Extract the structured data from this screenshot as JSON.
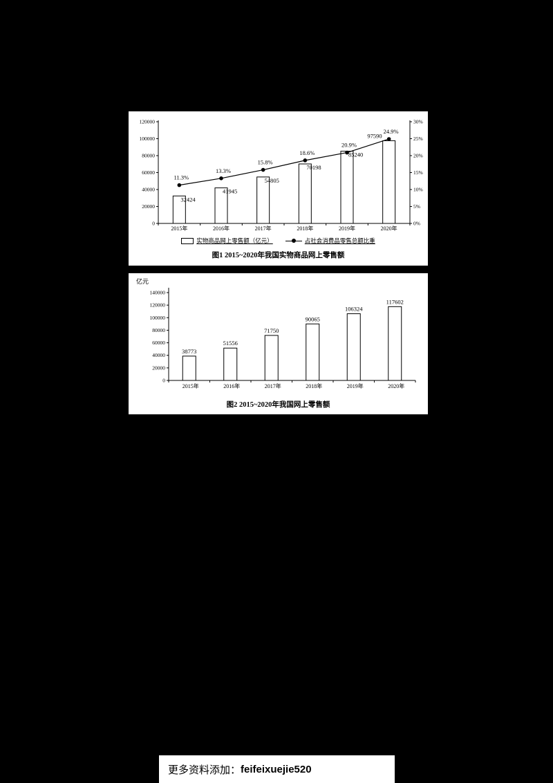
{
  "page": {
    "background_color": "#000000",
    "panel_color": "#ffffff",
    "ink_color": "#000000"
  },
  "footer": {
    "prefix": "更多资料添加：",
    "handle": "feifeixuejie520"
  },
  "chart_data": [
    {
      "type": "bar",
      "subtype": "bar+line-combo",
      "title": "图1  2015~2020年我国实物商品网上零售额",
      "categories": [
        "2015年",
        "2016年",
        "2017年",
        "2018年",
        "2019年",
        "2020年"
      ],
      "series": [
        {
          "name": "实物商品网上零售额（亿元）",
          "type": "bar",
          "axis": "left",
          "values": [
            32424,
            41945,
            54805,
            70198,
            85240,
            97590
          ],
          "labels": [
            "32424",
            "41945",
            "54805",
            "70198",
            "85240",
            "97590"
          ]
        },
        {
          "name": "占社会消费品零售总额比重",
          "type": "line",
          "axis": "right",
          "values": [
            11.3,
            13.3,
            15.8,
            18.6,
            20.9,
            24.9
          ],
          "labels": [
            "11.3%",
            "13.3%",
            "15.8%",
            "18.6%",
            "20.9%",
            "24.9%"
          ]
        }
      ],
      "left_axis": {
        "min": 0,
        "max": 120000,
        "step": 20000,
        "ticks": [
          "0",
          "20000",
          "40000",
          "60000",
          "80000",
          "100000",
          "120000"
        ]
      },
      "right_axis": {
        "min": 0,
        "max": 30,
        "step": 5,
        "ticks": [
          "0%",
          "5%",
          "10%",
          "15%",
          "20%",
          "25%",
          "30%"
        ]
      },
      "grid": false,
      "legend_position": "bottom"
    },
    {
      "type": "bar",
      "title": "图2  2015~2020年我国网上零售额",
      "ylabel": "亿元",
      "categories": [
        "2015年",
        "2016年",
        "2017年",
        "2018年",
        "2019年",
        "2020年"
      ],
      "values": [
        38773,
        51556,
        71750,
        90065,
        106324,
        117602
      ],
      "labels": [
        "38773",
        "51556",
        "71750",
        "90065",
        "106324",
        "117602"
      ],
      "ylim": [
        0,
        140000
      ],
      "yticks": [
        "0",
        "20000",
        "40000",
        "60000",
        "80000",
        "100000",
        "120000",
        "140000"
      ],
      "grid": false,
      "legend_position": "none"
    }
  ]
}
